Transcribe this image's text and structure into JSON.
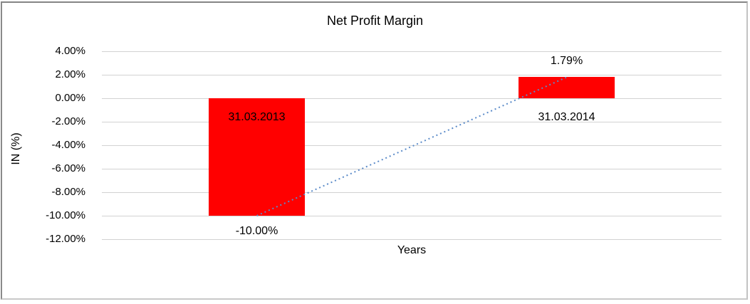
{
  "chart_data": {
    "type": "bar",
    "title": "Net Profit Margin",
    "xlabel": "Years",
    "ylabel": "IN (%)",
    "categories": [
      "31.03.2013",
      "31.03.2014"
    ],
    "values": [
      -10.0,
      1.79
    ],
    "data_labels": [
      "-10.00%",
      "1.79%"
    ],
    "ylim": [
      -12,
      4
    ],
    "yticks": [
      {
        "value": 4,
        "label": "4.00%"
      },
      {
        "value": 2,
        "label": "2.00%"
      },
      {
        "value": 0,
        "label": "0.00%"
      },
      {
        "value": -2,
        "label": "-2.00%"
      },
      {
        "value": -4,
        "label": "-4.00%"
      },
      {
        "value": -6,
        "label": "-6.00%"
      },
      {
        "value": -8,
        "label": "-8.00%"
      },
      {
        "value": -10,
        "label": "-10.00%"
      },
      {
        "value": -12,
        "label": "-12.00%"
      }
    ],
    "grid": true,
    "legend": false,
    "trendline": {
      "style": "dotted",
      "from_category_index": 0,
      "to_category_index": 1
    },
    "colors": {
      "bar": "#FF0000",
      "trendline": "#5B8BC9",
      "gridline": "#D2D2D2",
      "text": "#000000"
    }
  }
}
